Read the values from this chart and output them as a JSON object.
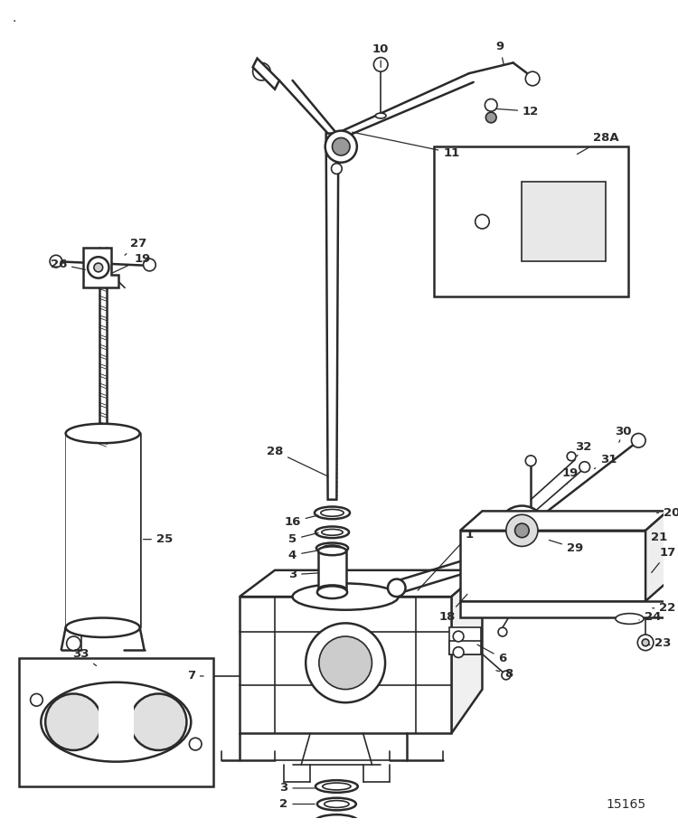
{
  "bg_color": "#ffffff",
  "fig_width": 7.5,
  "fig_height": 9.16,
  "dpi": 100,
  "part_number": "15165",
  "line_color": "#2a2a2a",
  "label_fontsize": 9.5
}
